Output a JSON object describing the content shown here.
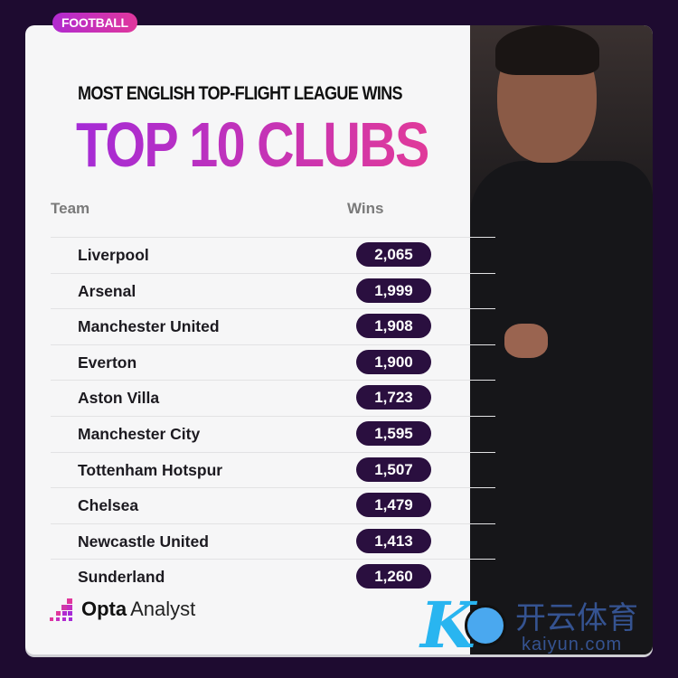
{
  "badge": "FOOTBALL",
  "subtitle": "MOST ENGLISH TOP-FLIGHT LEAGUE WINS",
  "title": "TOP 10 CLUBS",
  "colors": {
    "background": "#1e0b30",
    "accent": "#c52fc0",
    "pill": "#2a0f3f"
  },
  "chart_data": {
    "type": "table",
    "title": "TOP 10 CLUBS",
    "subtitle": "MOST ENGLISH TOP-FLIGHT LEAGUE WINS",
    "columns": [
      "Team",
      "Wins"
    ],
    "rows": [
      {
        "team": "Liverpool",
        "wins": "2,065"
      },
      {
        "team": "Arsenal",
        "wins": "1,999"
      },
      {
        "team": "Manchester United",
        "wins": "1,908"
      },
      {
        "team": "Everton",
        "wins": "1,900"
      },
      {
        "team": "Aston Villa",
        "wins": "1,723"
      },
      {
        "team": "Manchester City",
        "wins": "1,595"
      },
      {
        "team": "Tottenham Hotspur",
        "wins": "1,507"
      },
      {
        "team": "Chelsea",
        "wins": "1,479"
      },
      {
        "team": "Newcastle United",
        "wins": "1,413"
      },
      {
        "team": "Sunderland",
        "wins": "1,260"
      }
    ]
  },
  "footer": {
    "logo_bold": "Opta",
    "logo_light": "Analyst"
  },
  "watermark": {
    "mark": "K",
    "chinese": "开云体育",
    "latin": "kaiyun.com"
  }
}
